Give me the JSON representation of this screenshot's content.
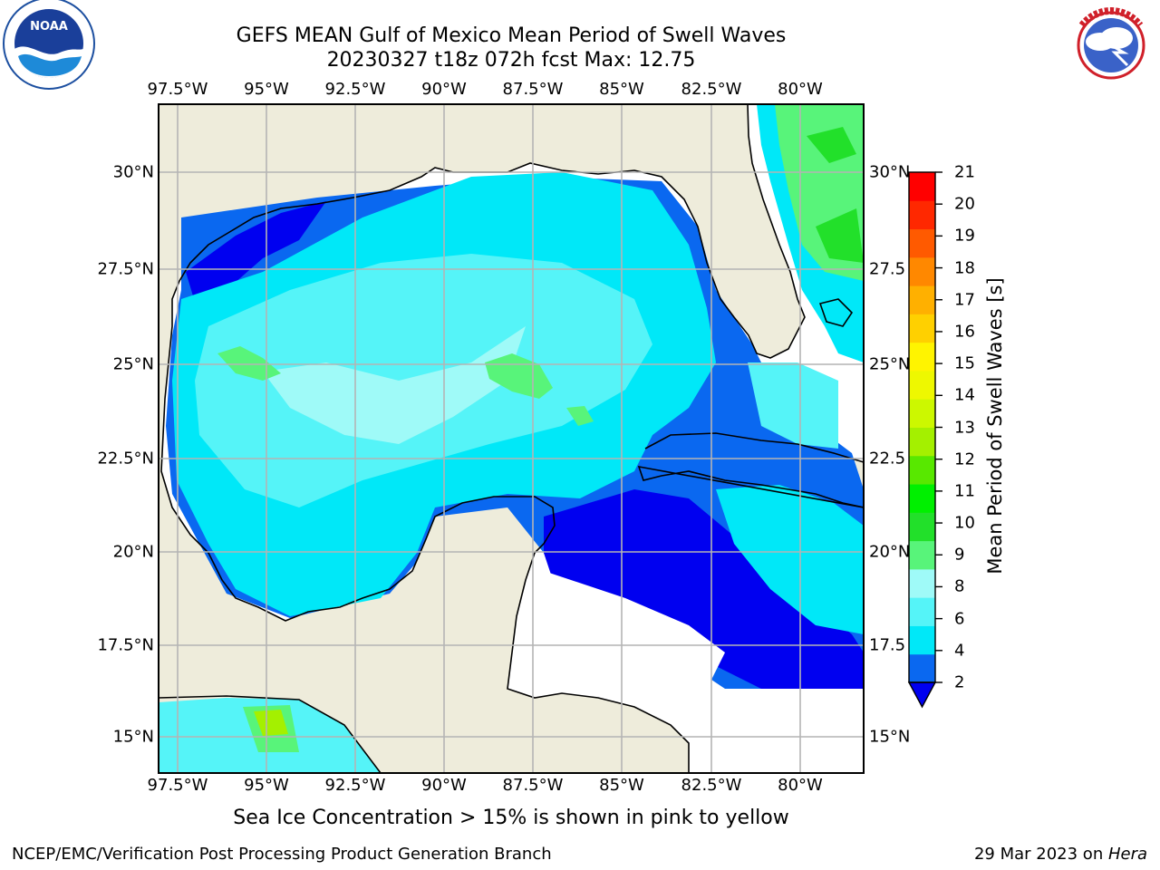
{
  "title": {
    "line1": "GEFS MEAN Gulf of Mexico Mean Period of Swell Waves",
    "line2": "20230327 t18z 072h fcst   Max: 12.75"
  },
  "map": {
    "lon_labels": [
      "97.5°W",
      "95°W",
      "92.5°W",
      "90°W",
      "87.5°W",
      "85°W",
      "82.5°W",
      "80°W"
    ],
    "lat_labels": [
      "30°N",
      "27.5°N",
      "25°N",
      "22.5°N",
      "20°N",
      "17.5°N",
      "15°N"
    ],
    "lat_labels_right": [
      "30°N",
      "27.5",
      "25°N",
      "22.5",
      "20°N",
      "17.5",
      "15°N"
    ],
    "colors": {
      "land": "#eeecdb",
      "ocean_nodata": "#ffffff",
      "grid": "#b4b4b4"
    }
  },
  "colorbar": {
    "title": "Mean Period of Swell Waves [s]",
    "ticks": [
      "2",
      "4",
      "6",
      "8",
      "9",
      "10",
      "11",
      "12",
      "13",
      "14",
      "15",
      "16",
      "17",
      "18",
      "19",
      "20",
      "21"
    ],
    "colors": [
      "#0a68f0",
      "#00e8f8",
      "#55f4f8",
      "#9ffaf8",
      "#58f47a",
      "#22e02a",
      "#00f000",
      "#58e800",
      "#a4f000",
      "#ccf800",
      "#eef800",
      "#fff400",
      "#ffd000",
      "#ffb000",
      "#ff8800",
      "#ff5a00",
      "#ff2800",
      "#ff0000"
    ],
    "under_color": "#0000f0"
  },
  "note": "Sea Ice Concentration > 15% is shown in pink to yellow",
  "footer": {
    "left": "NCEP/EMC/Verification Post Processing Product Generation Branch",
    "right_date": "29 Mar 2023 on ",
    "right_host": "Hera"
  },
  "logos": {
    "left": "NOAA",
    "right_ring": "NATIONAL WEATHER SERVICE"
  }
}
